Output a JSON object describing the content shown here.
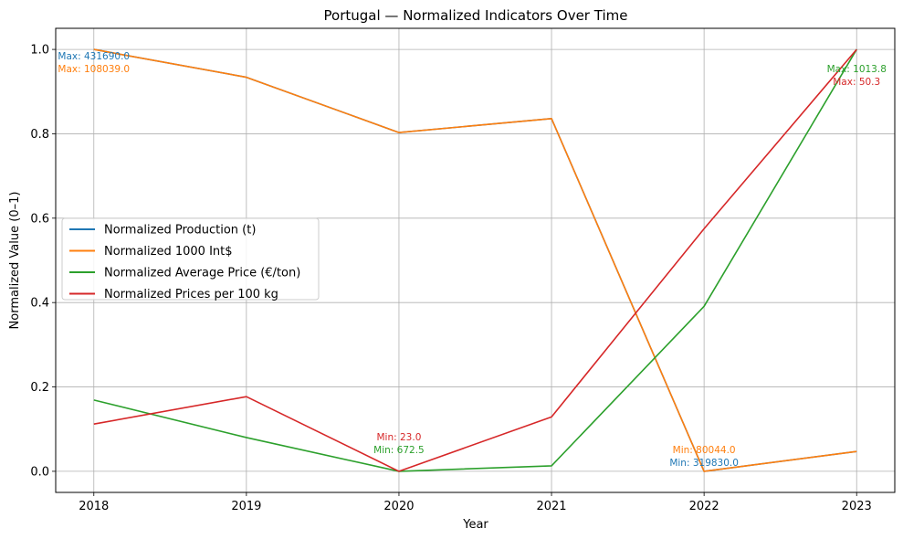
{
  "chart_data": {
    "type": "line",
    "title": "Portugal — Normalized Indicators Over Time",
    "xlabel": "Year",
    "ylabel": "Normalized Value (0–1)",
    "x": [
      2018,
      2019,
      2020,
      2021,
      2022,
      2023
    ],
    "ylim": [
      -0.05,
      1.05
    ],
    "yticks": [
      0.0,
      0.2,
      0.4,
      0.6,
      0.8,
      1.0
    ],
    "ytick_labels": [
      "0.0",
      "0.2",
      "0.4",
      "0.6",
      "0.8",
      "1.0"
    ],
    "xtick_labels": [
      "2018",
      "2019",
      "2020",
      "2021",
      "2022",
      "2023"
    ],
    "grid": true,
    "legend_position": "center-left",
    "series": [
      {
        "name": "Normalized Production (t)",
        "color": "#1f77b4",
        "values": [
          1.0,
          0.934,
          0.803,
          0.836,
          0.0,
          0.047
        ]
      },
      {
        "name": "Normalized 1000 Int$",
        "color": "#ff7f0e",
        "values": [
          1.0,
          0.934,
          0.803,
          0.836,
          0.0,
          0.047
        ]
      },
      {
        "name": "Normalized Average Price (€/ton)",
        "color": "#2ca02c",
        "values": [
          0.169,
          0.08,
          0.0,
          0.013,
          0.391,
          1.0
        ]
      },
      {
        "name": "Normalized Prices per 100 kg",
        "color": "#d62728",
        "values": [
          0.112,
          0.177,
          0.0,
          0.129,
          0.575,
          1.0
        ]
      }
    ],
    "annotations": [
      {
        "text": "Max: 431690.0",
        "x": 2018,
        "y": 1.0,
        "color": "#1f77b4",
        "series": 0
      },
      {
        "text": "Max: 108039.0",
        "x": 2018,
        "y": 1.0,
        "color": "#ff7f0e",
        "series": 1
      },
      {
        "text": "Min: 23.0",
        "x": 2020,
        "y": 0.0,
        "color": "#d62728",
        "series": 3
      },
      {
        "text": "Min: 672.5",
        "x": 2020,
        "y": 0.0,
        "color": "#2ca02c",
        "series": 2
      },
      {
        "text": "Min: 80044.0",
        "x": 2022,
        "y": 0.0,
        "color": "#ff7f0e",
        "series": 1
      },
      {
        "text": "Min: 319830.0",
        "x": 2022,
        "y": 0.0,
        "color": "#1f77b4",
        "series": 0
      },
      {
        "text": "Max: 1013.8",
        "x": 2023,
        "y": 1.0,
        "color": "#2ca02c",
        "series": 2
      },
      {
        "text": "Max: 50.3",
        "x": 2023,
        "y": 1.0,
        "color": "#d62728",
        "series": 3
      }
    ]
  }
}
